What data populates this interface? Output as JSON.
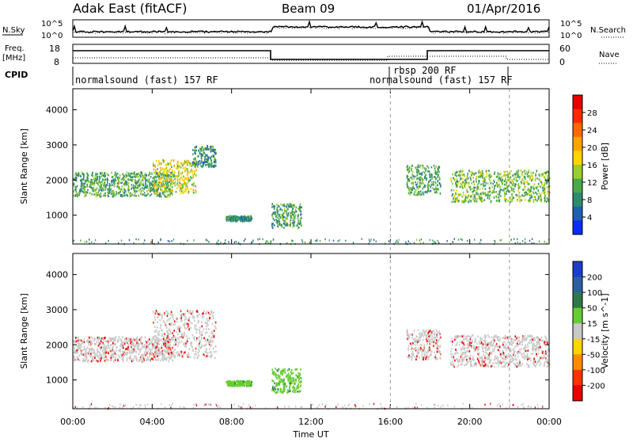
{
  "header": {
    "station": "Adak East (fitACF)",
    "beam": "Beam 09",
    "date": "01/Apr/2016"
  },
  "top_panels": {
    "nsky": {
      "label": "N.Sky",
      "tick_top": "10^5",
      "tick_bottom": "10^0"
    },
    "nsearch": {
      "label": "N.Search",
      "tick_top": "10^5",
      "tick_bottom": "10^0"
    },
    "freq": {
      "label_line1": "Freq.",
      "label_line2": "[MHz]",
      "tick_top": "18",
      "tick_bottom": "8"
    },
    "nave": {
      "label": "Nave",
      "tick_top": "60",
      "tick_bottom": "0"
    },
    "cpid": {
      "label": "CPID",
      "programs": [
        {
          "name": "normalsound (fast) 157 RF",
          "start_h": 0
        },
        {
          "name": "rbsp 200 RF",
          "start_h": 16.0
        },
        {
          "name": "normalsound (fast) 157 RF",
          "start_h": 16.0
        }
      ]
    }
  },
  "chart_data": [
    {
      "type": "heatmap",
      "panel": "power",
      "ylabel": "Slant Range [km]",
      "xlabel": "",
      "x_range_hours": [
        0,
        24
      ],
      "ylim": [
        180,
        4600
      ],
      "yticks": [
        1000,
        2000,
        3000,
        4000
      ],
      "colorbar": {
        "label": "Power [dB]",
        "ticks": [
          4,
          8,
          12,
          16,
          20,
          24,
          28
        ],
        "colors": [
          "#0a2cff",
          "#1e5fb0",
          "#2e8a6f",
          "#4aa84a",
          "#9ccd2e",
          "#ffd400",
          "#ffa500",
          "#ff6a00",
          "#ff2a00",
          "#e60000"
        ]
      },
      "echo_regions": [
        {
          "t_start": 0.0,
          "t_end": 5.0,
          "range_min": 1550,
          "range_max": 2250,
          "typical_db": 10
        },
        {
          "t_start": 4.0,
          "t_end": 6.2,
          "range_min": 1650,
          "range_max": 2600,
          "typical_db": 16
        },
        {
          "t_start": 6.0,
          "t_end": 7.2,
          "range_min": 2400,
          "range_max": 3000,
          "typical_db": 8
        },
        {
          "t_start": 7.7,
          "t_end": 9.0,
          "range_min": 850,
          "range_max": 1000,
          "typical_db": 8
        },
        {
          "t_start": 10.0,
          "t_end": 11.5,
          "range_min": 650,
          "range_max": 1350,
          "typical_db": 10
        },
        {
          "t_start": 16.8,
          "t_end": 18.5,
          "range_min": 1600,
          "range_max": 2450,
          "typical_db": 10
        },
        {
          "t_start": 19.0,
          "t_end": 24.0,
          "range_min": 1400,
          "range_max": 2300,
          "typical_db": 12
        }
      ]
    },
    {
      "type": "heatmap",
      "panel": "velocity",
      "ylabel": "Slant Range [km]",
      "xlabel": "Time UT",
      "x_range_hours": [
        0,
        24
      ],
      "xticks": [
        "00:00",
        "04:00",
        "08:00",
        "12:00",
        "16:00",
        "20:00",
        "00:00"
      ],
      "ylim": [
        180,
        4600
      ],
      "yticks": [
        1000,
        2000,
        3000,
        4000
      ],
      "colorbar": {
        "label": "Velocity [m s^-1]",
        "ticks": [
          200,
          100,
          50,
          15,
          -15,
          -50,
          -100,
          -200
        ],
        "colors": [
          "#1a3ec8",
          "#2c5fa0",
          "#2f7a4a",
          "#66cc33",
          "#c8c8c8",
          "#ffd400",
          "#ff8c00",
          "#ff3300",
          "#e60000"
        ]
      },
      "echo_regions": [
        {
          "t_start": 0.0,
          "t_end": 5.0,
          "range_min": 1550,
          "range_max": 2250,
          "typical_velocity": 0
        },
        {
          "t_start": 4.0,
          "t_end": 7.2,
          "range_min": 1650,
          "range_max": 3000,
          "typical_velocity": 0
        },
        {
          "t_start": 7.7,
          "t_end": 9.0,
          "range_min": 850,
          "range_max": 1000,
          "typical_velocity": 30
        },
        {
          "t_start": 10.0,
          "t_end": 11.5,
          "range_min": 650,
          "range_max": 1350,
          "typical_velocity": 30
        },
        {
          "t_start": 16.8,
          "t_end": 18.5,
          "range_min": 1600,
          "range_max": 2450,
          "typical_velocity": 0
        },
        {
          "t_start": 19.0,
          "t_end": 24.0,
          "range_min": 1400,
          "range_max": 2300,
          "typical_velocity": 0
        }
      ]
    }
  ],
  "vertical_markers_hours": [
    16.0,
    22.0
  ]
}
